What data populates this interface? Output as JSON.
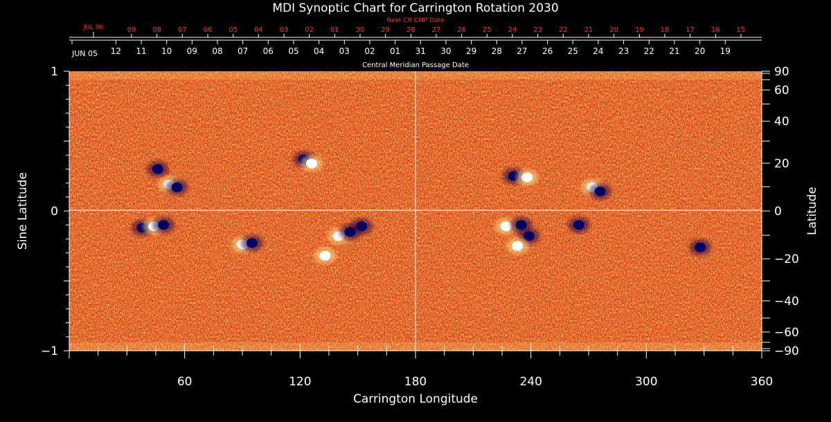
{
  "chart_data": {
    "type": "heatmap",
    "title": "MDI Synoptic Chart for Carrington Rotation 2030",
    "xlabel": "Carrington Longitude",
    "ylabel_left": "Sine Latitude",
    "ylabel_right": "Latitude",
    "xlim": [
      0,
      360
    ],
    "ylim": [
      -1,
      1
    ],
    "x_ticks": [
      60,
      120,
      180,
      240,
      300,
      360
    ],
    "y_ticks_left": [
      {
        "value": 1,
        "label": "1"
      },
      {
        "value": 0,
        "label": "0"
      },
      {
        "value": -1,
        "label": "−1"
      }
    ],
    "y_ticks_right_deg": [
      90,
      60,
      40,
      20,
      0,
      -20,
      -40,
      -60,
      -90
    ],
    "y_ticks_right_labels": [
      "90",
      "60",
      "40",
      "20",
      "0",
      "−20",
      "−40",
      "−60",
      "−90"
    ],
    "cmp_axis": {
      "start_label": "JUN 05",
      "caption": "Central Meridian Passage Date",
      "day_labels": [
        "12",
        "11",
        "10",
        "09",
        "08",
        "07",
        "06",
        "05",
        "04",
        "03",
        "02",
        "01",
        "31",
        "30",
        "29",
        "28",
        "27",
        "26",
        "25",
        "24",
        "23",
        "22",
        "21",
        "20",
        "19"
      ]
    },
    "next_cr_axis": {
      "start_label": "JUL 06",
      "caption": "Next CR CMP Date",
      "day_labels": [
        "09",
        "08",
        "07",
        "06",
        "05",
        "04",
        "03",
        "02",
        "01",
        "30",
        "29",
        "28",
        "27",
        "26",
        "25",
        "24",
        "23",
        "22",
        "21",
        "20",
        "19",
        "18",
        "17",
        "16",
        "15"
      ]
    },
    "colors": {
      "background": "#000000",
      "text": "#ffffff",
      "accent": "#ff3b00",
      "field_base": "#e84a10",
      "positive_polarity": "#ffffff",
      "negative_polarity": "#000064"
    },
    "active_regions": [
      {
        "lon": 46,
        "sinlat": 0.3,
        "polarity": "negative"
      },
      {
        "lon": 52,
        "sinlat": 0.19,
        "polarity": "positive"
      },
      {
        "lon": 56,
        "sinlat": 0.17,
        "polarity": "negative"
      },
      {
        "lon": 122,
        "sinlat": 0.37,
        "polarity": "negative"
      },
      {
        "lon": 126,
        "sinlat": 0.34,
        "polarity": "positive"
      },
      {
        "lon": 38,
        "sinlat": -0.12,
        "polarity": "negative"
      },
      {
        "lon": 44,
        "sinlat": -0.11,
        "polarity": "positive"
      },
      {
        "lon": 49,
        "sinlat": -0.1,
        "polarity": "negative"
      },
      {
        "lon": 90,
        "sinlat": -0.24,
        "polarity": "positive"
      },
      {
        "lon": 95,
        "sinlat": -0.23,
        "polarity": "negative"
      },
      {
        "lon": 140,
        "sinlat": -0.18,
        "polarity": "positive"
      },
      {
        "lon": 146,
        "sinlat": -0.15,
        "polarity": "negative"
      },
      {
        "lon": 152,
        "sinlat": -0.11,
        "polarity": "negative"
      },
      {
        "lon": 133,
        "sinlat": -0.32,
        "polarity": "positive"
      },
      {
        "lon": 231,
        "sinlat": 0.25,
        "polarity": "negative"
      },
      {
        "lon": 238,
        "sinlat": 0.24,
        "polarity": "positive"
      },
      {
        "lon": 272,
        "sinlat": 0.17,
        "polarity": "positive"
      },
      {
        "lon": 276,
        "sinlat": 0.14,
        "polarity": "negative"
      },
      {
        "lon": 227,
        "sinlat": -0.11,
        "polarity": "positive"
      },
      {
        "lon": 235,
        "sinlat": -0.1,
        "polarity": "negative"
      },
      {
        "lon": 239,
        "sinlat": -0.18,
        "polarity": "negative"
      },
      {
        "lon": 233,
        "sinlat": -0.25,
        "polarity": "positive"
      },
      {
        "lon": 265,
        "sinlat": -0.1,
        "polarity": "negative"
      },
      {
        "lon": 328,
        "sinlat": -0.26,
        "polarity": "negative"
      }
    ]
  }
}
